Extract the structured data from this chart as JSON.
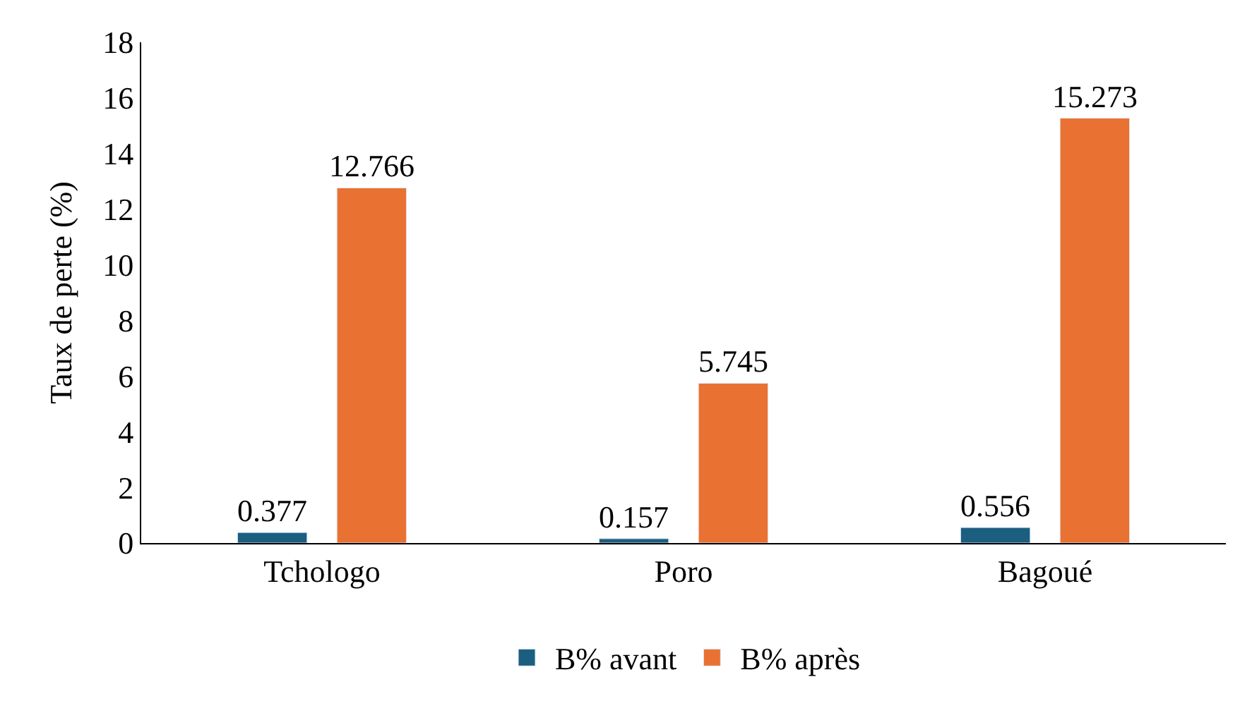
{
  "chart_data": {
    "type": "bar",
    "ylabel": "Taux de perte (%)",
    "categories": [
      "Tchologo",
      "Poro",
      "Bagoué"
    ],
    "series": [
      {
        "name": "B% avant",
        "color": "#1b5e80",
        "values": [
          0.377,
          0.157,
          0.556
        ]
      },
      {
        "name": "B% après",
        "color": "#e97132",
        "values": [
          12.766,
          5.745,
          15.273
        ]
      }
    ],
    "ylim": [
      0,
      18
    ],
    "yticks": [
      0,
      2,
      4,
      6,
      8,
      10,
      12,
      14,
      16,
      18
    ],
    "data_labels": true,
    "legend": "bottom"
  }
}
